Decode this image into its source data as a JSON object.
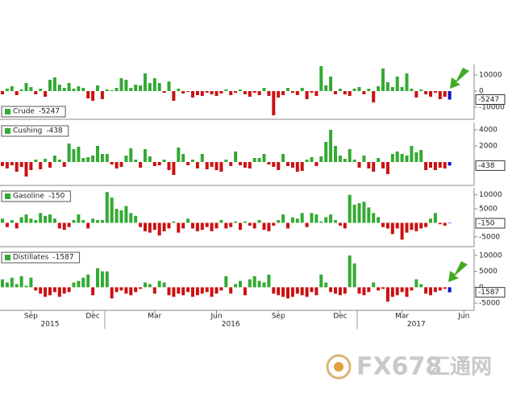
{
  "chart_data": [
    {
      "type": "bar",
      "title": "Crude",
      "legend": "lower left",
      "ylim": [
        -17500,
        16500
      ],
      "yticks": [
        -10000,
        0,
        10000
      ],
      "positive_color": "#33aa33",
      "negative_color": "#cc1111",
      "current_color": "#1010cc",
      "values": [
        -2000,
        1500,
        3000,
        -2500,
        1000,
        5000,
        2500,
        -2000,
        1500,
        -3500,
        7000,
        8500,
        4000,
        2000,
        5000,
        1500,
        3000,
        2000,
        -4500,
        -6000,
        3500,
        -5000,
        1000,
        500,
        2000,
        8000,
        7000,
        2000,
        4000,
        3500,
        11000,
        5000,
        8000,
        5000,
        -1000,
        6000,
        -6000,
        1500,
        -1500,
        -500,
        -4000,
        -2500,
        -3000,
        -1000,
        -2000,
        -3000,
        -1500,
        1000,
        -2500,
        -1000,
        1000,
        -2000,
        -3500,
        -1000,
        -2500,
        2000,
        -3000,
        -15000,
        -4000,
        -2500,
        2000,
        -1000,
        -2500,
        2000,
        -5000,
        -1000,
        -3000,
        15500,
        3500,
        9000,
        -2000,
        1500,
        -2000,
        -3000,
        1500,
        2500,
        -2000,
        1500,
        -7000,
        3000,
        14000,
        5500,
        2500,
        9000,
        2500,
        11000,
        1500,
        -4000,
        1000,
        -2000,
        -3500,
        -1000,
        -5000,
        -3500,
        -5247,
        null,
        null,
        null
      ]
    },
    {
      "type": "bar",
      "title": "Cushing",
      "legend": "upper left",
      "ylim": [
        -2900,
        4900
      ],
      "yticks": [
        2000,
        4000
      ],
      "positive_color": "#33aa33",
      "negative_color": "#cc1111",
      "current_color": "#1010cc",
      "values": [
        -500,
        -800,
        -400,
        -1200,
        -600,
        -1800,
        -1000,
        300,
        -900,
        400,
        -700,
        800,
        300,
        -600,
        2300,
        1600,
        1900,
        500,
        600,
        800,
        2000,
        1000,
        1000,
        -300,
        -800,
        -600,
        800,
        1700,
        300,
        -700,
        1600,
        700,
        -500,
        -400,
        300,
        -1000,
        -1600,
        1800,
        1000,
        -400,
        300,
        -800,
        1000,
        -900,
        -600,
        -1000,
        -1200,
        300,
        -500,
        1300,
        -400,
        -700,
        -800,
        500,
        500,
        1000,
        -300,
        -600,
        -1000,
        1000,
        -500,
        -700,
        -1200,
        -1100,
        300,
        600,
        -500,
        700,
        2500,
        4000,
        2000,
        800,
        400,
        1600,
        300,
        -700,
        800,
        -800,
        -1200,
        500,
        -800,
        -1500,
        1000,
        1300,
        1000,
        800,
        2000,
        1200,
        1500,
        -1000,
        -700,
        -1000,
        -700,
        -800,
        -438,
        null,
        null,
        null
      ]
    },
    {
      "type": "bar",
      "title": "Gasoline",
      "legend": "upper left",
      "ylim": [
        -8500,
        12500
      ],
      "yticks": [
        -5000,
        5000,
        10000
      ],
      "positive_color": "#33aa33",
      "negative_color": "#cc1111",
      "current_color": "#1010cc",
      "values": [
        1500,
        -1500,
        1000,
        -2000,
        2000,
        3000,
        1500,
        1000,
        3500,
        2500,
        3000,
        1500,
        -2000,
        -2500,
        -1500,
        1000,
        3000,
        1000,
        -2000,
        1500,
        1000,
        1000,
        11000,
        9000,
        5000,
        4500,
        6000,
        3500,
        2500,
        -1500,
        -3000,
        -3500,
        -2500,
        -4500,
        -3000,
        -2000,
        500,
        -3500,
        -2000,
        1500,
        -2000,
        -3000,
        -2500,
        -1500,
        -3000,
        -2000,
        1000,
        -2000,
        -1500,
        500,
        -2500,
        500,
        -1000,
        -2000,
        1000,
        -2500,
        -3000,
        -1000,
        1000,
        3000,
        -2000,
        2000,
        1500,
        3500,
        -1500,
        3500,
        3000,
        500,
        2000,
        3000,
        1000,
        -1000,
        -2000,
        10000,
        6500,
        7000,
        7500,
        5500,
        3500,
        2000,
        -1500,
        -2000,
        -4000,
        -2000,
        -6000,
        -3500,
        -2500,
        -3000,
        -2000,
        -1500,
        1500,
        3500,
        -500,
        -1000,
        -150,
        null,
        null,
        null
      ]
    },
    {
      "type": "bar",
      "title": "Distillates",
      "legend": "upper left",
      "ylim": [
        -7250,
        12000
      ],
      "yticks": [
        -5000,
        0,
        5000,
        10000
      ],
      "positive_color": "#33aa33",
      "negative_color": "#cc1111",
      "current_color": "#1010cc",
      "values": [
        2500,
        1500,
        3000,
        1000,
        3500,
        500,
        3000,
        -1000,
        -2000,
        -3000,
        -2500,
        -1500,
        -3000,
        -2000,
        -1500,
        1500,
        2000,
        3000,
        4000,
        -2500,
        6000,
        5000,
        5000,
        -3500,
        -1500,
        -1000,
        -2000,
        -2500,
        -1500,
        -500,
        1500,
        1000,
        -2000,
        2000,
        1500,
        -2500,
        -3000,
        -2000,
        -2500,
        -1500,
        -3000,
        -2500,
        -2000,
        -1500,
        -3000,
        -2000,
        -1000,
        3500,
        -2000,
        1000,
        2000,
        -2500,
        2500,
        3500,
        2000,
        1500,
        4000,
        -2000,
        -2500,
        -3000,
        -3500,
        -3000,
        -2000,
        -2500,
        -3000,
        -1500,
        -2500,
        4000,
        1500,
        -1500,
        -2000,
        -2500,
        -2000,
        10000,
        7500,
        -2000,
        -2500,
        -1500,
        1500,
        -1000,
        -500,
        -4500,
        -3000,
        -2500,
        -1500,
        -3000,
        -1000,
        2500,
        1000,
        -2000,
        -2500,
        -1500,
        -1000,
        -500,
        -1587,
        null,
        null,
        null
      ]
    }
  ],
  "x_axis": {
    "categories": [
      null,
      null,
      null,
      null,
      null,
      null,
      "Sep",
      null,
      null,
      null,
      null,
      null,
      null,
      null,
      null,
      null,
      null,
      null,
      null,
      "Dec",
      null,
      null,
      null,
      null,
      null,
      null,
      null,
      null,
      null,
      null,
      null,
      null,
      "Mar",
      null,
      null,
      null,
      null,
      null,
      null,
      null,
      null,
      null,
      null,
      null,
      null,
      "Jun",
      null,
      null,
      null,
      null,
      null,
      null,
      null,
      null,
      null,
      null,
      null,
      null,
      "Sep",
      null,
      null,
      null,
      null,
      null,
      null,
      null,
      null,
      null,
      null,
      null,
      null,
      "Dec",
      null,
      null,
      null,
      null,
      null,
      null,
      null,
      null,
      null,
      null,
      null,
      null,
      "Mar",
      null,
      null,
      null,
      null,
      null,
      null,
      null,
      null,
      null,
      null,
      null,
      null,
      "Jun"
    ],
    "year_labels": [
      {
        "label": "2015",
        "index": 10
      },
      {
        "label": "2016",
        "index": 48
      },
      {
        "label": "2017",
        "index": 87
      }
    ]
  },
  "watermark": {
    "brand": "FX678",
    "site": "汇通网"
  }
}
